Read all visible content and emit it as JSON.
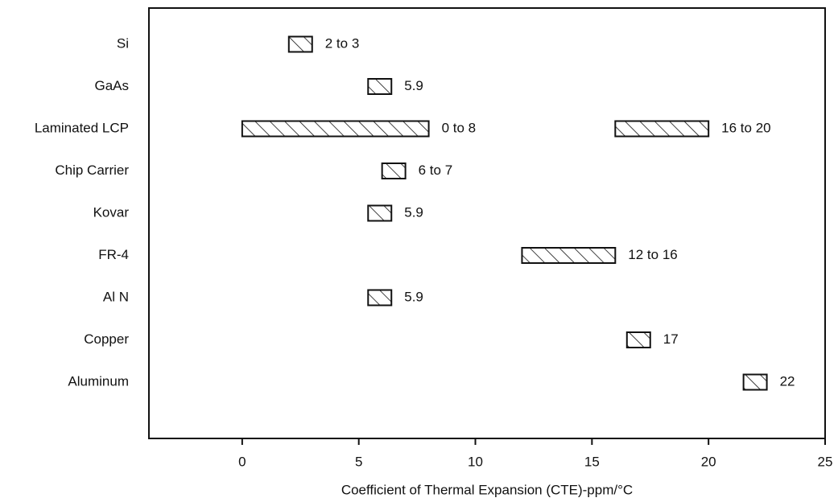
{
  "chart_data": {
    "type": "range-bar",
    "x_label": "Coefficient of Thermal Expansion (CTE)-ppm/°C",
    "categories": [
      "Si",
      "GaAs",
      "Laminated LCP",
      "Chip Carrier",
      "Kovar",
      "FR-4",
      "Al N",
      "Copper",
      "Aluminum"
    ],
    "series": [
      {
        "low": [
          2,
          5.9,
          0,
          6,
          5.9,
          12,
          5.9,
          17,
          22
        ],
        "high": [
          3,
          5.9,
          8,
          7,
          5.9,
          16,
          5.9,
          17,
          22
        ],
        "value_labels": [
          "2 to 3",
          "5.9",
          "0 to 8",
          "6 to 7",
          "5.9",
          "12 to 16",
          "5.9",
          "17",
          "22"
        ]
      },
      {
        "low": [
          null,
          null,
          16,
          null,
          null,
          null,
          null,
          null,
          null
        ],
        "high": [
          null,
          null,
          20,
          null,
          null,
          null,
          null,
          null,
          null
        ],
        "value_labels": [
          null,
          null,
          "16 to 20",
          null,
          null,
          null,
          null,
          null,
          null
        ]
      }
    ],
    "color": "#111111",
    "xlim": [
      -4,
      25
    ],
    "xticks": [
      0,
      5,
      10,
      15,
      20,
      25
    ]
  }
}
